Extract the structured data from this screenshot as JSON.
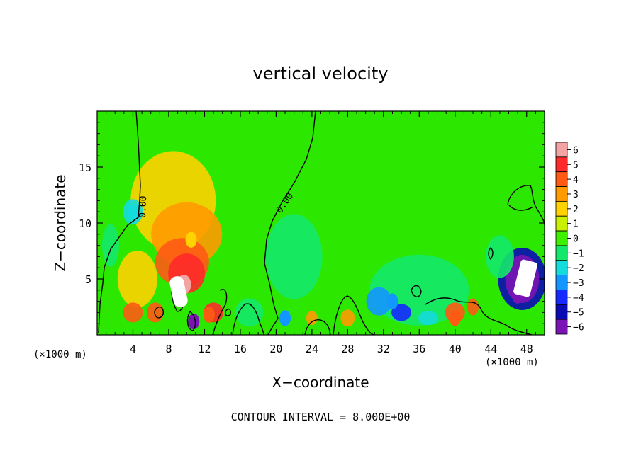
{
  "chart_data": {
    "type": "heatmap",
    "title": "vertical velocity",
    "xlabel": "X−coordinate",
    "ylabel": "Z−coordinate",
    "x_unit_label": "(×1000 m)",
    "x_unit_label_right": "(×1000 m)",
    "footer": "CONTOUR INTERVAL = 8.000E+00",
    "xlim": [
      0,
      50
    ],
    "ylim": [
      0,
      20
    ],
    "x_ticks": [
      4,
      8,
      12,
      16,
      20,
      24,
      28,
      32,
      36,
      40,
      44,
      48
    ],
    "x_tick_labels": [
      "4",
      "8",
      "12",
      "16",
      "20",
      "24",
      "28",
      "32",
      "36",
      "40",
      "44",
      "48"
    ],
    "y_ticks": [
      5,
      10,
      15
    ],
    "y_tick_labels": [
      "5",
      "10",
      "15"
    ],
    "colorbar": {
      "levels": [
        6,
        5,
        4,
        3,
        2,
        1,
        0,
        -1,
        -2,
        -3,
        -4,
        -5,
        -6
      ],
      "labels": [
        "6",
        "5",
        "4",
        "3",
        "2",
        "1",
        "0",
        "−1",
        "−2",
        "−3",
        "−4",
        "−5",
        "−6"
      ],
      "colors": [
        "#f4a3a3",
        "#ff2a2a",
        "#ff5a14",
        "#ff9a00",
        "#ffd200",
        "#c8f000",
        "#3cf000",
        "#14e86a",
        "#14dcdc",
        "#1496ff",
        "#1428ff",
        "#0a0ab4",
        "#7a14b4"
      ]
    },
    "contour_labels": [
      "0.00",
      "0.00"
    ],
    "features": [
      {
        "x": 9.7,
        "z": 4.5,
        "value": 8
      },
      {
        "x": 12.5,
        "z": 1.8,
        "value": 4
      },
      {
        "x": 10.5,
        "z": 8.5,
        "value": 2
      },
      {
        "x": 10.8,
        "z": 1.2,
        "value": -6
      },
      {
        "x": 47.5,
        "z": 5.0,
        "value": -7
      },
      {
        "x": 47.0,
        "z": 3.5,
        "value": -6
      },
      {
        "x": 4.0,
        "z": 11.0,
        "value": -2
      },
      {
        "x": 33.0,
        "z": 3.0,
        "value": -3
      },
      {
        "x": 40.0,
        "z": 1.5,
        "value": 4
      },
      {
        "x": 21.0,
        "z": 1.5,
        "value": -3
      }
    ]
  }
}
